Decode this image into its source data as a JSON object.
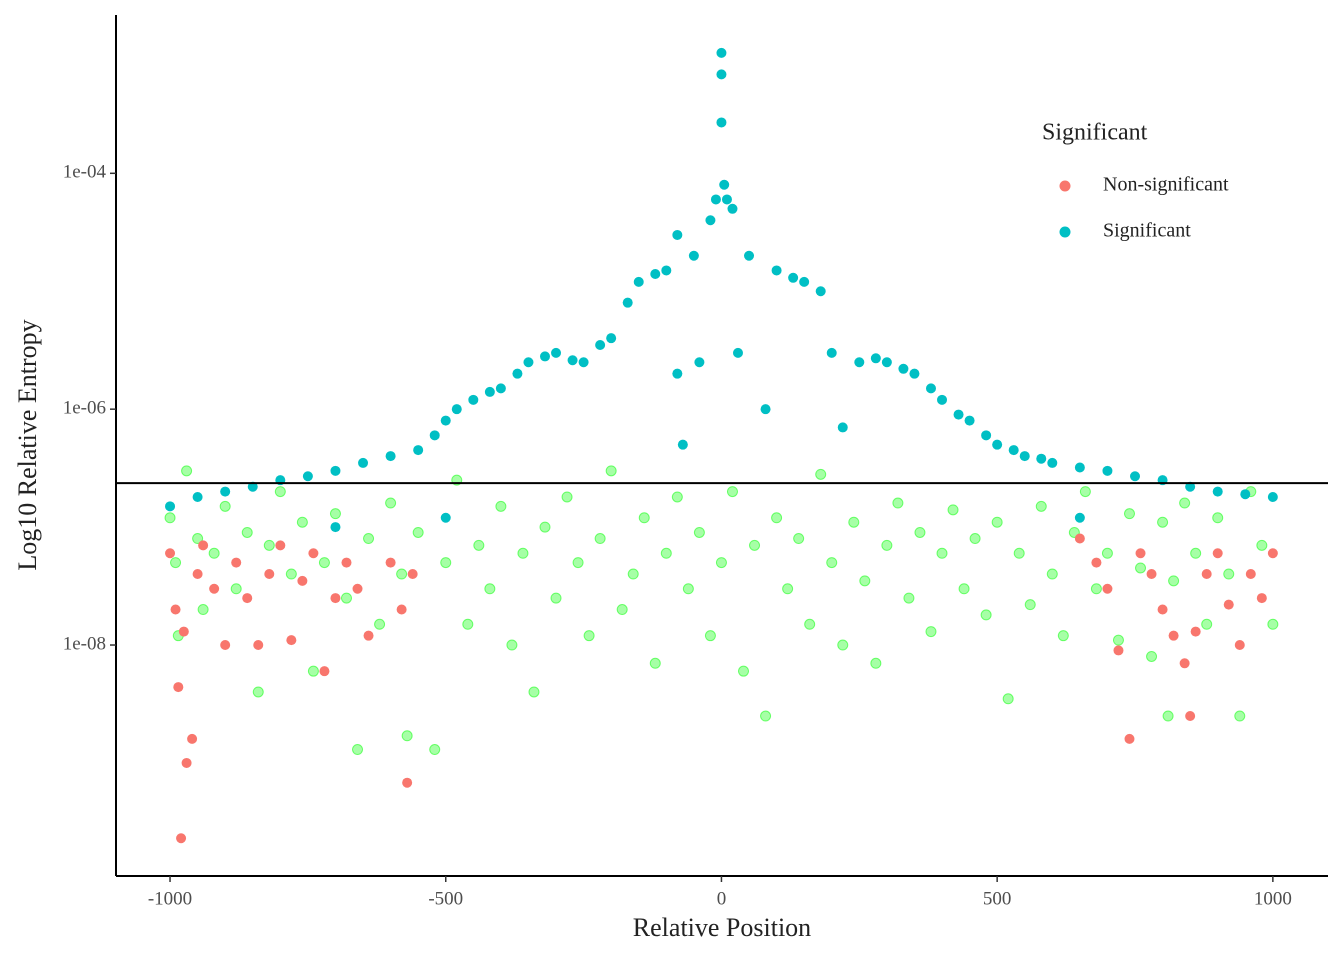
{
  "chart_data": {
    "type": "scatter",
    "x_label": "Relative Position",
    "y_label": "Log10 Relative Entropy",
    "log_y": true,
    "xlim": [
      -1098,
      1100
    ],
    "ylim": [
      1.1e-10,
      0.0022
    ],
    "xticks": [
      -1000,
      -500,
      0,
      500,
      1000
    ],
    "yticks": [
      {
        "value": 1e-08,
        "label": "1e-08"
      },
      {
        "value": 1e-06,
        "label": "1e-06"
      },
      {
        "value": 0.0001,
        "label": "1e-04"
      }
    ],
    "hline": 2.36e-07,
    "legend_title": "Significant",
    "legend": "top-right",
    "series": [
      {
        "color": "#00ff00",
        "opacity": 0.35,
        "x": [
          -1000,
          -990,
          -985,
          -970,
          -950,
          -940,
          -920,
          -900,
          -880,
          -860,
          -840,
          -820,
          -800,
          -780,
          -760,
          -740,
          -720,
          -700,
          -680,
          -660,
          -640,
          -620,
          -600,
          -580,
          -570,
          -550,
          -520,
          -500,
          -480,
          -460,
          -440,
          -420,
          -400,
          -380,
          -360,
          -340,
          -320,
          -300,
          -280,
          -260,
          -240,
          -220,
          -200,
          -180,
          -160,
          -140,
          -120,
          -100,
          -80,
          -60,
          -40,
          -20,
          0,
          20,
          40,
          60,
          80,
          100,
          120,
          140,
          160,
          180,
          200,
          220,
          240,
          260,
          280,
          300,
          320,
          340,
          360,
          380,
          400,
          420,
          440,
          460,
          480,
          500,
          520,
          540,
          560,
          580,
          600,
          620,
          640,
          660,
          680,
          700,
          720,
          740,
          760,
          780,
          800,
          810,
          820,
          840,
          860,
          880,
          900,
          920,
          940,
          960,
          980,
          1000
        ],
        "values": [
          1.2e-07,
          5e-08,
          1.2e-08,
          3e-07,
          8e-08,
          2e-08,
          6e-08,
          1.5e-07,
          3e-08,
          9e-08,
          4e-09,
          7e-08,
          2e-07,
          4e-08,
          1.1e-07,
          6e-09,
          5e-08,
          1.3e-07,
          2.5e-08,
          1.3e-09,
          8e-08,
          1.5e-08,
          1.6e-07,
          4e-08,
          1.7e-09,
          9e-08,
          1.3e-09,
          5e-08,
          2.5e-07,
          1.5e-08,
          7e-08,
          3e-08,
          1.5e-07,
          1e-08,
          6e-08,
          4e-09,
          1e-07,
          2.5e-08,
          1.8e-07,
          5e-08,
          1.2e-08,
          8e-08,
          3e-07,
          2e-08,
          4e-08,
          1.2e-07,
          7e-09,
          6e-08,
          1.8e-07,
          3e-08,
          9e-08,
          1.2e-08,
          5e-08,
          2e-07,
          6e-09,
          7e-08,
          2.5e-09,
          1.2e-07,
          3e-08,
          8e-08,
          1.5e-08,
          2.8e-07,
          5e-08,
          1e-08,
          1.1e-07,
          3.5e-08,
          7e-09,
          7e-08,
          1.6e-07,
          2.5e-08,
          9e-08,
          1.3e-08,
          6e-08,
          1.4e-07,
          3e-08,
          8e-08,
          1.8e-08,
          1.1e-07,
          3.5e-09,
          6e-08,
          2.2e-08,
          1.5e-07,
          4e-08,
          1.2e-08,
          9e-08,
          2e-07,
          3e-08,
          6e-08,
          1.1e-08,
          1.3e-07,
          4.5e-08,
          8e-09,
          1.1e-07,
          2.5e-09,
          3.5e-08,
          1.6e-07,
          6e-08,
          1.5e-08,
          1.2e-07,
          4e-08,
          2.5e-09,
          2e-07,
          7e-08,
          1.5e-08
        ]
      },
      {
        "name": "Non-significant",
        "color": "#f8766d",
        "opacity": 1,
        "x": [
          -1000,
          -990,
          -985,
          -980,
          -975,
          -970,
          -960,
          -950,
          -940,
          -920,
          -900,
          -880,
          -860,
          -840,
          -820,
          -800,
          -780,
          -760,
          -740,
          -720,
          -700,
          -680,
          -660,
          -640,
          -600,
          -580,
          -570,
          -560,
          650,
          680,
          700,
          720,
          740,
          760,
          780,
          800,
          820,
          840,
          850,
          860,
          880,
          900,
          920,
          940,
          960,
          980,
          1000
        ],
        "values": [
          6e-08,
          2e-08,
          4.4e-09,
          2.3e-10,
          1.3e-08,
          1e-09,
          1.6e-09,
          4e-08,
          7e-08,
          3e-08,
          1e-08,
          5e-08,
          2.5e-08,
          1e-08,
          4e-08,
          7e-08,
          1.1e-08,
          3.5e-08,
          6e-08,
          6e-09,
          2.5e-08,
          5e-08,
          3e-08,
          1.2e-08,
          5e-08,
          2e-08,
          6.8e-10,
          4e-08,
          8e-08,
          5e-08,
          3e-08,
          9e-09,
          1.6e-09,
          6e-08,
          4e-08,
          2e-08,
          1.2e-08,
          7e-09,
          2.5e-09,
          1.3e-08,
          4e-08,
          6e-08,
          2.2e-08,
          1e-08,
          4e-08,
          2.5e-08,
          6e-08
        ]
      },
      {
        "name": "Significant",
        "color": "#00bfc4",
        "opacity": 1,
        "x": [
          -1000,
          -950,
          -900,
          -850,
          -800,
          -750,
          -700,
          -650,
          -600,
          -550,
          -520,
          -500,
          -480,
          -450,
          -420,
          -400,
          -370,
          -350,
          -320,
          -300,
          -270,
          -250,
          -220,
          -200,
          -170,
          -150,
          -120,
          -100,
          -80,
          -80,
          -70,
          -50,
          -40,
          -20,
          -10,
          0,
          0,
          0,
          5,
          10,
          20,
          30,
          50,
          80,
          100,
          130,
          150,
          180,
          200,
          220,
          250,
          280,
          300,
          330,
          350,
          380,
          400,
          430,
          450,
          480,
          500,
          530,
          550,
          580,
          600,
          650,
          700,
          750,
          800,
          850,
          900,
          950,
          1000,
          -700,
          -500,
          650
        ],
        "values": [
          1.5e-07,
          1.8e-07,
          2e-07,
          2.2e-07,
          2.5e-07,
          2.7e-07,
          3e-07,
          3.5e-07,
          4e-07,
          4.5e-07,
          6e-07,
          8e-07,
          1e-06,
          1.2e-06,
          1.4e-06,
          1.5e-06,
          2e-06,
          2.5e-06,
          2.8e-06,
          3e-06,
          2.6e-06,
          2.5e-06,
          3.5e-06,
          4e-06,
          8e-06,
          1.2e-05,
          1.4e-05,
          1.5e-05,
          3e-05,
          2e-06,
          5e-07,
          2e-05,
          2.5e-06,
          4e-05,
          6e-05,
          0.00105,
          0.00069,
          0.00027,
          8e-05,
          6e-05,
          5e-05,
          3e-06,
          2e-05,
          1e-06,
          1.5e-05,
          1.3e-05,
          1.2e-05,
          1e-05,
          3e-06,
          7e-07,
          2.5e-06,
          2.7e-06,
          2.5e-06,
          2.2e-06,
          2e-06,
          1.5e-06,
          1.2e-06,
          9e-07,
          8e-07,
          6e-07,
          5e-07,
          4.5e-07,
          4e-07,
          3.8e-07,
          3.5e-07,
          3.2e-07,
          3e-07,
          2.7e-07,
          2.5e-07,
          2.2e-07,
          2e-07,
          1.9e-07,
          1.8e-07,
          1e-07,
          1.2e-07,
          1.2e-07
        ]
      }
    ]
  }
}
